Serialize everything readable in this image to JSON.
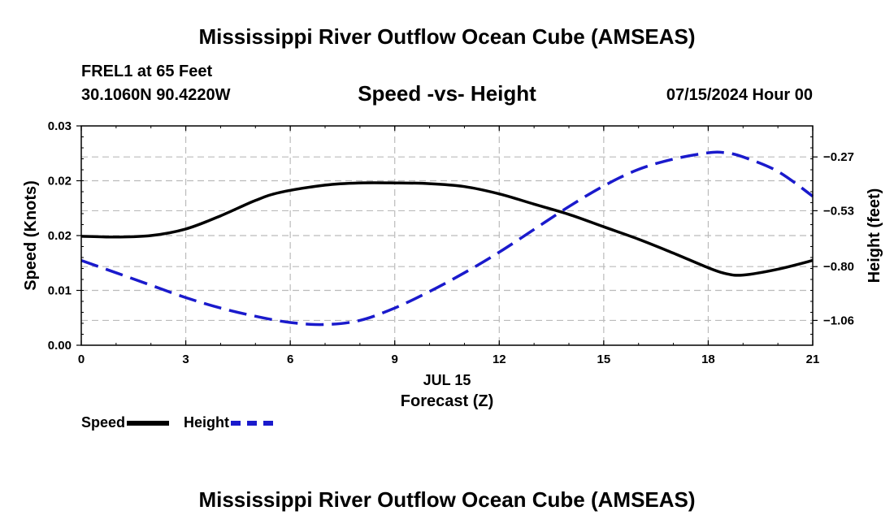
{
  "header": {
    "title": "Mississippi River Outflow Ocean Cube (AMSEAS)",
    "station": "FREL1 at 65 Feet",
    "coords": "30.1060N  90.4220W",
    "subtitle": "Speed -vs- Height",
    "date": "07/15/2024 Hour 00",
    "footer_title": "Mississippi River Outflow Ocean Cube (AMSEAS)"
  },
  "legend": {
    "speed_label": "Speed",
    "height_label": "Height"
  },
  "colors": {
    "speed": "#000000",
    "height": "#1a1acc",
    "grid": "#bbbbbb"
  },
  "chart_data": {
    "type": "line",
    "title": "Speed -vs- Height",
    "xlabel": "Forecast (Z)",
    "xlabel_date": "JUL 15",
    "xlim": [
      0,
      21
    ],
    "xticks": [
      0,
      3,
      6,
      9,
      12,
      15,
      18,
      21
    ],
    "xtick_labels": [
      "0",
      "3",
      "6",
      "9",
      "12",
      "15",
      "18",
      "21"
    ],
    "left_axis": {
      "label": "Speed (Knots)",
      "ylim": [
        0.0,
        0.03
      ],
      "ticks": [
        0.0,
        0.01,
        0.02,
        0.02,
        0.03
      ],
      "tick_values": [
        0.0,
        0.0075,
        0.015,
        0.0225,
        0.03
      ],
      "tick_labels": [
        "0.00",
        "0.01",
        "0.02",
        "0.02",
        "0.03"
      ]
    },
    "right_axis": {
      "label": "Height (feet)",
      "ylim": [
        -1.18,
        -0.12
      ],
      "tick_values": [
        -1.06,
        -0.8,
        -0.53,
        -0.27
      ],
      "tick_labels": [
        "−1.06",
        "−0.80",
        "−0.53",
        "−0.27"
      ]
    },
    "series": [
      {
        "name": "Speed",
        "axis": "left",
        "style": "solid",
        "x": [
          0,
          1,
          2,
          3,
          4,
          5,
          5.7,
          7,
          8,
          9,
          10,
          11,
          12,
          13,
          14,
          15,
          16,
          17,
          18,
          18.5,
          19,
          20,
          21
        ],
        "values": [
          0.0149,
          0.0148,
          0.015,
          0.0159,
          0.0177,
          0.0198,
          0.0209,
          0.0219,
          0.0222,
          0.0222,
          0.0221,
          0.0217,
          0.0207,
          0.0193,
          0.0179,
          0.0162,
          0.0145,
          0.0126,
          0.0106,
          0.0098,
          0.0096,
          0.0104,
          0.0116
        ]
      },
      {
        "name": "Height",
        "axis": "right",
        "style": "dashed",
        "x": [
          0,
          1,
          2,
          3,
          4,
          5,
          6,
          7,
          8,
          9,
          10,
          11,
          12,
          13,
          14,
          15,
          16,
          17,
          18,
          18.5,
          19,
          20,
          21
        ],
        "values": [
          -0.77,
          -0.83,
          -0.89,
          -0.95,
          -1.0,
          -1.04,
          -1.07,
          -1.08,
          -1.06,
          -1.0,
          -0.92,
          -0.83,
          -0.73,
          -0.62,
          -0.51,
          -0.41,
          -0.33,
          -0.28,
          -0.25,
          -0.25,
          -0.27,
          -0.34,
          -0.46
        ]
      }
    ]
  }
}
